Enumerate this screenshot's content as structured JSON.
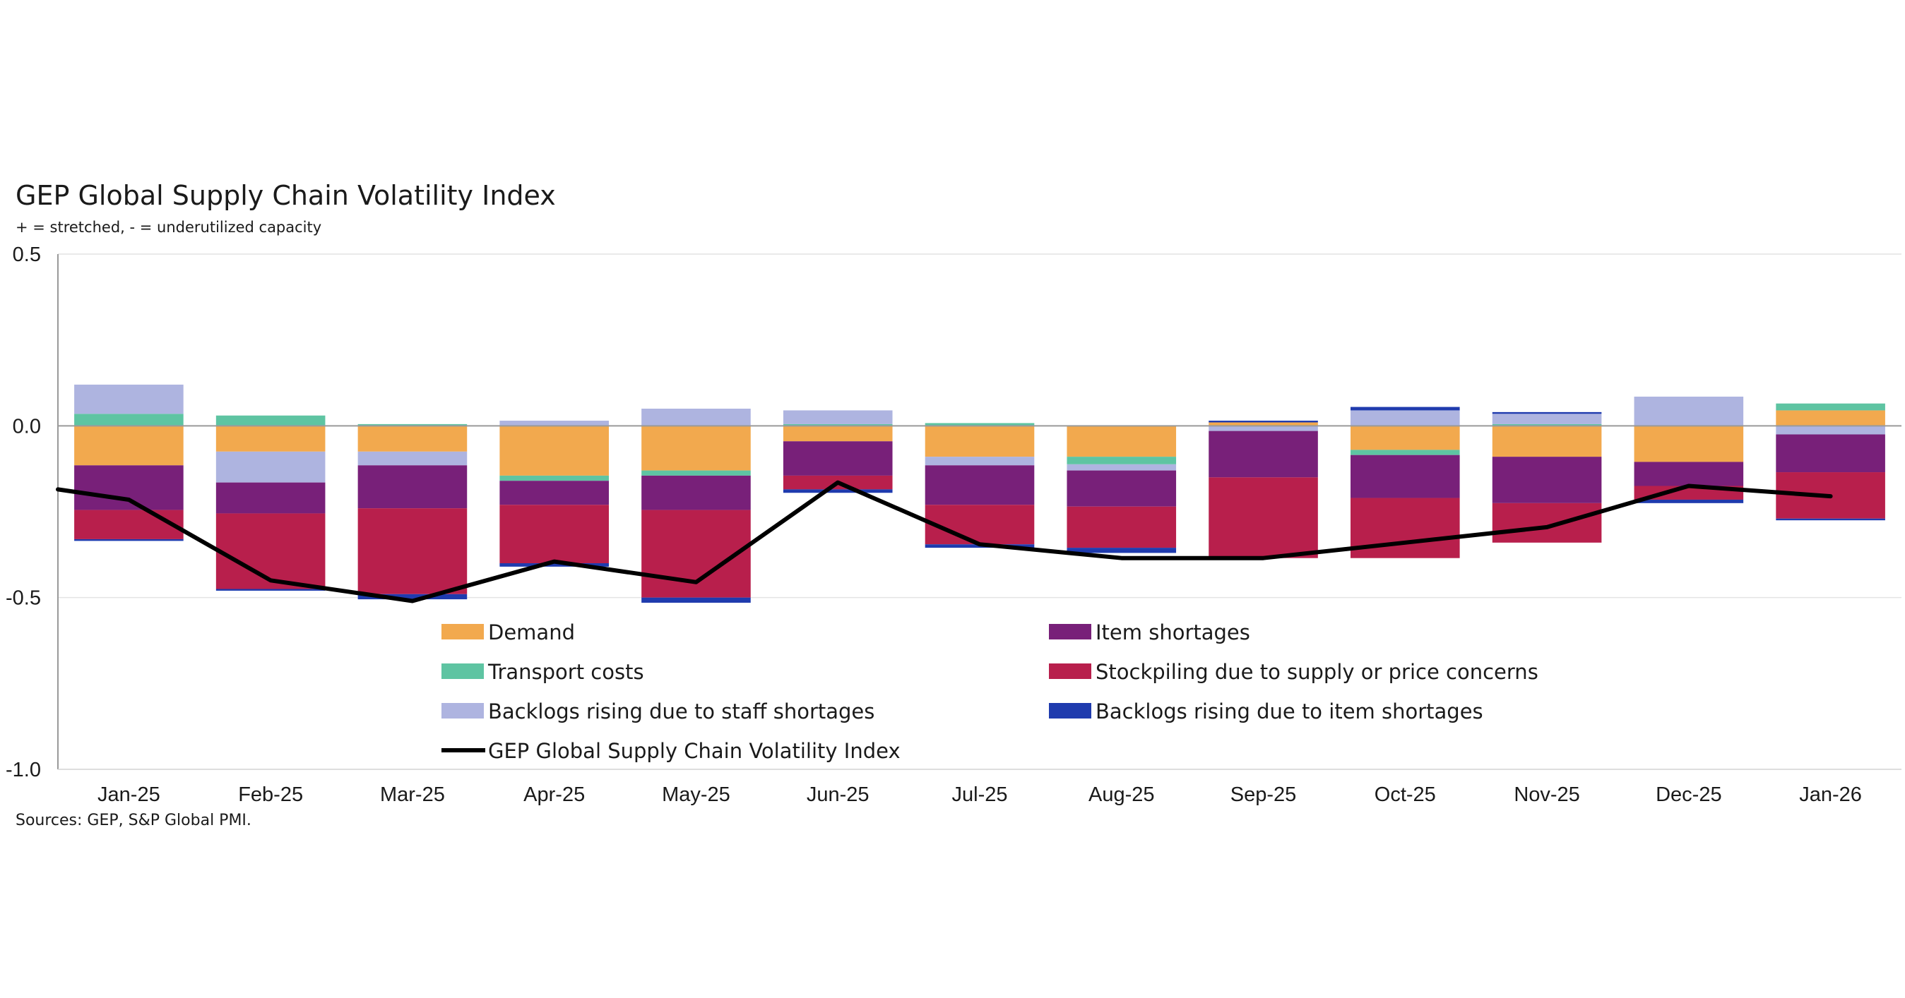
{
  "chart_data": {
    "type": "bar",
    "title": "GEP Global Supply Chain Volatility Index",
    "subtitle": "+ = stretched, - = underutilized capacity",
    "source": "Sources: GEP, S&P Global PMI.",
    "categories": [
      "Jan-25",
      "Feb-25",
      "Mar-25",
      "Apr-25",
      "May-25",
      "Jun-25",
      "Jul-25",
      "Aug-25",
      "Sep-25",
      "Oct-25",
      "Nov-25",
      "Dec-25",
      "Jan-26"
    ],
    "ylim": [
      -1.0,
      0.5
    ],
    "yticks": [
      0.5,
      0.0,
      -0.5,
      -1.0
    ],
    "ytick_labels": [
      "0.5",
      "0.0",
      "-0.5",
      "-1.0"
    ],
    "grid": true,
    "stacked": true,
    "series": [
      {
        "name": "Demand",
        "color": "#F2A94E",
        "kind": "bar",
        "values": [
          -0.115,
          -0.075,
          -0.075,
          -0.145,
          -0.13,
          -0.045,
          -0.09,
          -0.09,
          0.01,
          -0.07,
          -0.09,
          -0.105,
          0.045
        ]
      },
      {
        "name": "Transport costs",
        "color": "#5EC4A2",
        "kind": "bar",
        "values": [
          0.035,
          0.03,
          0.005,
          -0.015,
          -0.015,
          0.005,
          0.008,
          -0.022,
          0.0,
          -0.015,
          0.005,
          0.0,
          0.02
        ]
      },
      {
        "name": "Backlogs rising due to staff shortages",
        "color": "#AEB4E0",
        "kind": "bar",
        "values": [
          0.085,
          -0.09,
          -0.04,
          0.015,
          0.05,
          0.04,
          -0.025,
          -0.018,
          -0.015,
          0.045,
          0.03,
          0.085,
          -0.025
        ]
      },
      {
        "name": "Item shortages",
        "color": "#782079",
        "kind": "bar",
        "values": [
          -0.13,
          -0.09,
          -0.125,
          -0.07,
          -0.1,
          -0.1,
          -0.115,
          -0.105,
          -0.135,
          -0.125,
          -0.135,
          -0.07,
          -0.11
        ]
      },
      {
        "name": "Stockpiling due to supply or price concerns",
        "color": "#B81F4C",
        "kind": "bar",
        "values": [
          -0.085,
          -0.22,
          -0.25,
          -0.17,
          -0.255,
          -0.04,
          -0.115,
          -0.12,
          -0.235,
          -0.175,
          -0.115,
          -0.04,
          -0.135
        ]
      },
      {
        "name": "Backlogs rising due to item shortages",
        "color": "#1F3BAE",
        "kind": "bar",
        "values": [
          -0.005,
          -0.005,
          -0.015,
          -0.01,
          -0.015,
          -0.01,
          -0.01,
          -0.015,
          0.005,
          0.01,
          0.005,
          -0.01,
          -0.005
        ]
      },
      {
        "name": "GEP Global Supply Chain Volatility Index",
        "color": "#000000",
        "kind": "line",
        "values": [
          -0.215,
          -0.45,
          -0.51,
          -0.395,
          -0.455,
          -0.165,
          -0.345,
          -0.385,
          -0.385,
          -0.34,
          -0.295,
          -0.175,
          -0.205
        ]
      }
    ],
    "line_start_value": -0.185,
    "legend": {
      "placement": "bottom-center",
      "columns": [
        [
          "Demand",
          "Transport costs",
          "Backlogs rising due to staff shortages",
          "GEP Global Supply Chain Volatility Index"
        ],
        [
          "Item shortages",
          "Stockpiling due to supply or price concerns",
          "Backlogs rising due to item shortages"
        ]
      ]
    }
  }
}
